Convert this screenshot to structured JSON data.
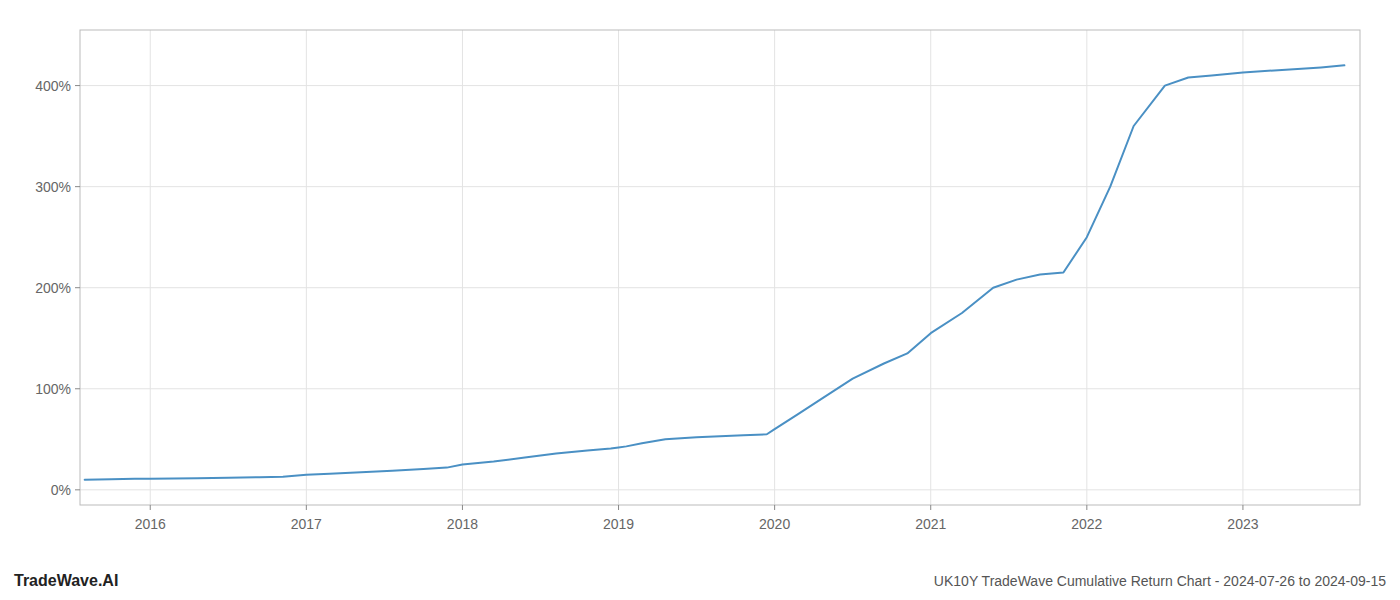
{
  "chart_data": {
    "type": "line",
    "title": "UK10Y TradeWave Cumulative Return Chart - 2024-07-26 to 2024-09-15",
    "annotations": [
      "TradeWave.AI"
    ],
    "x": [
      2015.58,
      2015.75,
      2015.9,
      2016.0,
      2016.15,
      2016.3,
      2016.5,
      2016.7,
      2016.85,
      2017.0,
      2017.15,
      2017.35,
      2017.55,
      2017.75,
      2017.9,
      2018.0,
      2018.2,
      2018.4,
      2018.6,
      2018.8,
      2018.95,
      2019.0,
      2019.05,
      2019.15,
      2019.3,
      2019.5,
      2019.65,
      2019.8,
      2019.95,
      2020.0,
      2020.15,
      2020.3,
      2020.5,
      2020.7,
      2020.85,
      2021.0,
      2021.2,
      2021.4,
      2021.55,
      2021.7,
      2021.85,
      2022.0,
      2022.15,
      2022.3,
      2022.5,
      2022.65,
      2022.8,
      2023.0,
      2023.2,
      2023.5,
      2023.65
    ],
    "values": [
      10,
      10.5,
      11,
      11,
      11.2,
      11.5,
      12,
      12.5,
      13,
      15,
      16,
      17.5,
      19,
      20.5,
      22,
      25,
      28,
      32,
      36,
      39,
      41,
      42,
      43,
      46,
      50,
      52,
      53,
      54,
      55,
      60,
      75,
      90,
      110,
      125,
      135,
      155,
      175,
      200,
      208,
      213,
      215,
      250,
      300,
      360,
      400,
      408,
      410,
      413,
      415,
      418,
      420
    ],
    "color": "#4a90c4",
    "xlim": [
      2015.55,
      2023.75
    ],
    "xticks": [
      2016,
      2017,
      2018,
      2019,
      2020,
      2021,
      2022,
      2023
    ],
    "ylim": [
      -15,
      455
    ],
    "yticks": [
      {
        "value": 0,
        "label": "0%"
      },
      {
        "value": 100,
        "label": "100%"
      },
      {
        "value": 200,
        "label": "200%"
      },
      {
        "value": 300,
        "label": "300%"
      },
      {
        "value": 400,
        "label": "400%"
      }
    ],
    "grid": true
  }
}
